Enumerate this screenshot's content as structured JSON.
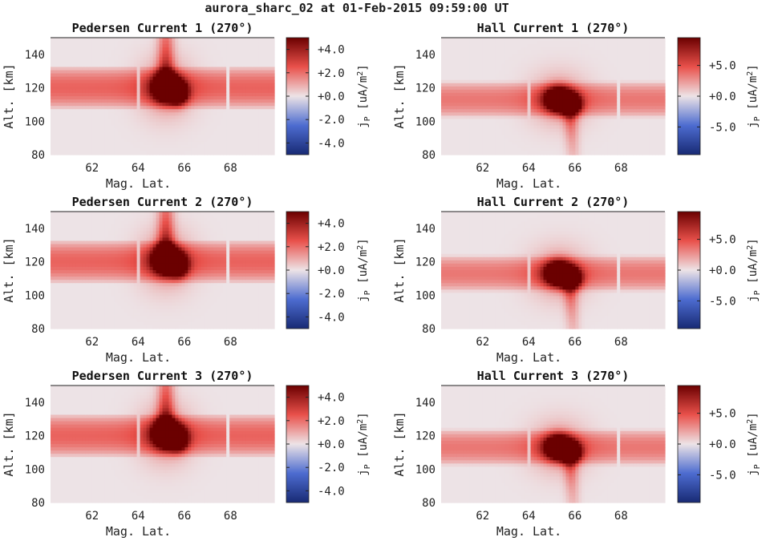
{
  "figure": {
    "title": "aurora_sharc_02 at 01-Feb-2015 09:59:00 UT"
  },
  "colors": {
    "negative_extreme": "#182a74",
    "negative": "#4d6cd0",
    "neutral": "#ede3e6",
    "positive": "#e9514b",
    "positive_extreme": "#6b0000"
  },
  "chart_data": [
    {
      "type": "heatmap",
      "title": "Pedersen Current 1 (270°)",
      "xlabel": "Mag. Lat.",
      "ylabel": "Alt. [km]",
      "xlim": [
        60.2,
        69.9
      ],
      "ylim": [
        80,
        150
      ],
      "xticks": [
        "62",
        "64",
        "66",
        "68"
      ],
      "xtick_values": [
        62,
        64,
        66,
        68
      ],
      "yticks": [
        "80",
        "100",
        "120",
        "140"
      ],
      "ytick_values": [
        80,
        100,
        120,
        140
      ],
      "colorbar": {
        "label": "j",
        "label_sub": "P",
        "label_unit": " [uA/m",
        "label_unit_sup": "2",
        "label_unit_end": "]",
        "ticks": [
          "+4.0",
          "+2.0",
          "+0.0",
          "-2.0",
          "-4.0"
        ],
        "tick_values": [
          4,
          2,
          0,
          -2,
          -4
        ],
        "range": [
          -5,
          5
        ]
      },
      "band": {
        "center_alt": 120,
        "halfwidth": 13,
        "peak": 2.2,
        "gaps": [
          [
            63.9,
            64.1
          ],
          [
            67.8,
            68.0
          ]
        ]
      },
      "blob": {
        "lat": 65.2,
        "alt": 120,
        "peak": 8,
        "lat_width": 0.6,
        "alt_width": 9,
        "tail_top": 150
      }
    },
    {
      "type": "heatmap",
      "title": "Hall Current 1 (270°)",
      "xlabel": "Mag. Lat.",
      "ylabel": "Alt. [km]",
      "xlim": [
        60.2,
        69.9
      ],
      "ylim": [
        80,
        150
      ],
      "xticks": [
        "62",
        "64",
        "66",
        "68"
      ],
      "xtick_values": [
        62,
        64,
        66,
        68
      ],
      "yticks": [
        "80",
        "100",
        "120",
        "140"
      ],
      "ytick_values": [
        80,
        100,
        120,
        140
      ],
      "colorbar": {
        "label": "j",
        "label_sub": "P",
        "label_unit": " [uA/m",
        "label_unit_sup": "2",
        "label_unit_end": "]",
        "ticks": [
          "+5.0",
          "+0.0",
          "-5.0"
        ],
        "tick_values": [
          5,
          0,
          -5
        ],
        "range": [
          -9.5,
          9.5
        ]
      },
      "band": {
        "center_alt": 113,
        "halfwidth": 11,
        "peak": 3.5,
        "gaps": [
          [
            63.9,
            64.1
          ],
          [
            67.8,
            68.0
          ]
        ]
      },
      "blob": {
        "lat": 65.3,
        "alt": 113,
        "peak": 14,
        "lat_width": 0.65,
        "alt_width": 8,
        "tail_bottom": 80
      }
    },
    {
      "type": "heatmap",
      "title": "Pedersen Current 2 (270°)",
      "xlabel": "Mag. Lat.",
      "ylabel": "Alt. [km]",
      "xlim": [
        60.2,
        69.9
      ],
      "ylim": [
        80,
        150
      ],
      "xticks": [
        "62",
        "64",
        "66",
        "68"
      ],
      "xtick_values": [
        62,
        64,
        66,
        68
      ],
      "yticks": [
        "80",
        "100",
        "120",
        "140"
      ],
      "ytick_values": [
        80,
        100,
        120,
        140
      ],
      "colorbar": {
        "label": "j",
        "label_sub": "P",
        "label_unit": " [uA/m",
        "label_unit_sup": "2",
        "label_unit_end": "]",
        "ticks": [
          "+4.0",
          "+2.0",
          "+0.0",
          "-2.0",
          "-4.0"
        ],
        "tick_values": [
          4,
          2,
          0,
          -2,
          -4
        ],
        "range": [
          -5,
          5
        ]
      },
      "band": {
        "center_alt": 120,
        "halfwidth": 13,
        "peak": 2.2,
        "gaps": [
          [
            63.9,
            64.1
          ],
          [
            67.8,
            68.0
          ]
        ]
      },
      "blob": {
        "lat": 65.2,
        "alt": 121,
        "peak": 8,
        "lat_width": 0.6,
        "alt_width": 9,
        "tail_top": 150
      }
    },
    {
      "type": "heatmap",
      "title": "Hall Current 2 (270°)",
      "xlabel": "Mag. Lat.",
      "ylabel": "Alt. [km]",
      "xlim": [
        60.2,
        69.9
      ],
      "ylim": [
        80,
        150
      ],
      "xticks": [
        "62",
        "64",
        "66",
        "68"
      ],
      "xtick_values": [
        62,
        64,
        66,
        68
      ],
      "yticks": [
        "80",
        "100",
        "120",
        "140"
      ],
      "ytick_values": [
        80,
        100,
        120,
        140
      ],
      "colorbar": {
        "label": "j",
        "label_sub": "P",
        "label_unit": " [uA/m",
        "label_unit_sup": "2",
        "label_unit_end": "]",
        "ticks": [
          "+5.0",
          "+0.0",
          "-5.0"
        ],
        "tick_values": [
          5,
          0,
          -5
        ],
        "range": [
          -9.5,
          9.5
        ]
      },
      "band": {
        "center_alt": 113,
        "halfwidth": 11,
        "peak": 3.5,
        "gaps": [
          [
            63.9,
            64.1
          ],
          [
            67.8,
            68.0
          ]
        ]
      },
      "blob": {
        "lat": 65.3,
        "alt": 113,
        "peak": 14,
        "lat_width": 0.65,
        "alt_width": 8,
        "tail_bottom": 80
      }
    },
    {
      "type": "heatmap",
      "title": "Pedersen Current 3 (270°)",
      "xlabel": "Mag. Lat.",
      "ylabel": "Alt. [km]",
      "xlim": [
        60.2,
        69.9
      ],
      "ylim": [
        80,
        150
      ],
      "xticks": [
        "62",
        "64",
        "66",
        "68"
      ],
      "xtick_values": [
        62,
        64,
        66,
        68
      ],
      "yticks": [
        "80",
        "100",
        "120",
        "140"
      ],
      "ytick_values": [
        80,
        100,
        120,
        140
      ],
      "colorbar": {
        "label": "j",
        "label_sub": "P",
        "label_unit": " [uA/m",
        "label_unit_sup": "2",
        "label_unit_end": "]",
        "ticks": [
          "+4.0",
          "+2.0",
          "+0.0",
          "-2.0",
          "-4.0"
        ],
        "tick_values": [
          4,
          2,
          0,
          -2,
          -4
        ],
        "range": [
          -5,
          5
        ]
      },
      "band": {
        "center_alt": 120,
        "halfwidth": 13,
        "peak": 2.2,
        "gaps": [
          [
            63.9,
            64.1
          ],
          [
            67.8,
            68.0
          ]
        ]
      },
      "blob": {
        "lat": 65.2,
        "alt": 121,
        "peak": 8,
        "lat_width": 0.6,
        "alt_width": 9,
        "tail_top": 150
      }
    },
    {
      "type": "heatmap",
      "title": "Hall Current 3 (270°)",
      "xlabel": "Mag. Lat.",
      "ylabel": "Alt. [km]",
      "xlim": [
        60.2,
        69.9
      ],
      "ylim": [
        80,
        150
      ],
      "xticks": [
        "62",
        "64",
        "66",
        "68"
      ],
      "xtick_values": [
        62,
        64,
        66,
        68
      ],
      "yticks": [
        "80",
        "100",
        "120",
        "140"
      ],
      "ytick_values": [
        80,
        100,
        120,
        140
      ],
      "colorbar": {
        "label": "j",
        "label_sub": "P",
        "label_unit": " [uA/m",
        "label_unit_sup": "2",
        "label_unit_end": "]",
        "ticks": [
          "+5.0",
          "+0.0",
          "-5.0"
        ],
        "tick_values": [
          5,
          0,
          -5
        ],
        "range": [
          -9.5,
          9.5
        ]
      },
      "band": {
        "center_alt": 113,
        "halfwidth": 11,
        "peak": 3.5,
        "gaps": [
          [
            63.9,
            64.1
          ],
          [
            67.8,
            68.0
          ]
        ]
      },
      "blob": {
        "lat": 65.3,
        "alt": 113,
        "peak": 14,
        "lat_width": 0.65,
        "alt_width": 8,
        "tail_bottom": 80
      }
    }
  ]
}
